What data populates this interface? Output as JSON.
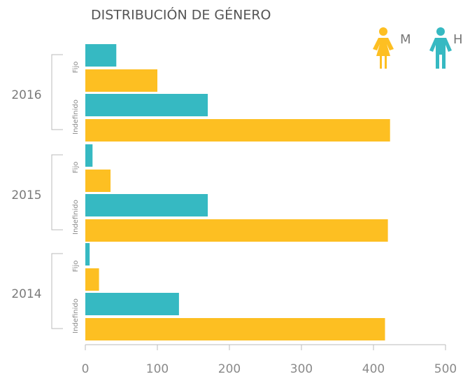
{
  "chart_data": {
    "type": "grouped-hbar",
    "title": "DISTRIBUCIÓN DE GÉNERO",
    "categories": [
      "2016",
      "2015",
      "2014"
    ],
    "subcategories": [
      "Fijo",
      "Indefinido"
    ],
    "series": [
      {
        "name": "H",
        "color": "#36b9c2",
        "values": [
          [
            43,
            170
          ],
          [
            10,
            170
          ],
          [
            6,
            130
          ]
        ]
      },
      {
        "name": "M",
        "color": "#fdbf22",
        "values": [
          [
            100,
            423
          ],
          [
            35,
            420
          ],
          [
            19,
            416
          ]
        ]
      }
    ],
    "xlim": [
      0,
      500
    ],
    "xticks": [
      0,
      100,
      200,
      300,
      400,
      500
    ]
  }
}
